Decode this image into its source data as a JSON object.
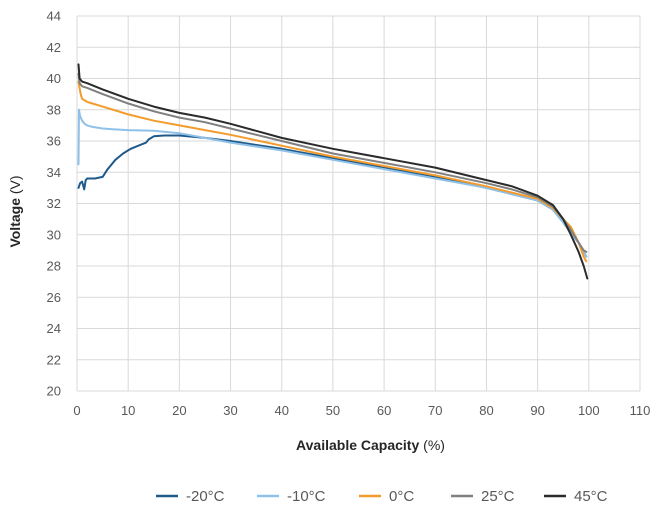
{
  "chart_data": {
    "type": "line",
    "title": "",
    "xlabel_bold": "Available Capacity",
    "xlabel_unit": " (%)",
    "ylabel_bold": "Voltage",
    "ylabel_unit": " (V)",
    "xlim": [
      0,
      110
    ],
    "ylim": [
      20,
      44
    ],
    "x_ticks": [
      0,
      10,
      20,
      30,
      40,
      50,
      60,
      70,
      80,
      90,
      100,
      110
    ],
    "y_ticks": [
      20,
      22,
      24,
      26,
      28,
      30,
      32,
      34,
      36,
      38,
      40,
      42,
      44
    ],
    "grid": true,
    "legend_position": "bottom",
    "series": [
      {
        "name": "-20°C",
        "color": "#1f5a8a",
        "x": [
          0.3,
          0.6,
          1.0,
          1.4,
          1.7,
          2.0,
          2.5,
          3.5,
          5.0,
          6.0,
          7.5,
          9.0,
          10.5,
          12.0,
          13.5,
          14.0,
          15.0,
          17.0,
          20.0,
          25.0,
          30.0,
          40.0,
          50.0,
          60.0,
          70.0,
          80.0,
          85.0,
          90.0,
          93.0,
          95.0,
          96.5,
          98.0,
          99.0,
          99.5
        ],
        "y": [
          33.0,
          33.3,
          33.4,
          32.9,
          33.5,
          33.6,
          33.6,
          33.6,
          33.7,
          34.2,
          34.8,
          35.2,
          35.5,
          35.7,
          35.9,
          36.1,
          36.3,
          36.35,
          36.35,
          36.2,
          36.0,
          35.5,
          34.9,
          34.3,
          33.7,
          33.0,
          32.6,
          32.2,
          31.6,
          30.8,
          30.1,
          29.5,
          28.9,
          28.6
        ]
      },
      {
        "name": "-10°C",
        "color": "#8fc1e8",
        "x": [
          0.3,
          0.4,
          0.6,
          1.0,
          1.5,
          2.0,
          3.0,
          5.0,
          7.0,
          10.0,
          15.0,
          20.0,
          25.0,
          30.0,
          40.0,
          50.0,
          60.0,
          70.0,
          80.0,
          85.0,
          90.0,
          93.0,
          95.0,
          96.5,
          98.0,
          99.0,
          99.5
        ],
        "y": [
          34.5,
          38.0,
          37.6,
          37.3,
          37.1,
          37.0,
          36.9,
          36.8,
          36.75,
          36.7,
          36.65,
          36.5,
          36.2,
          35.9,
          35.4,
          34.8,
          34.2,
          33.6,
          33.0,
          32.6,
          32.2,
          31.6,
          30.8,
          30.1,
          29.5,
          28.9,
          28.6
        ]
      },
      {
        "name": "0°C",
        "color": "#f39c2c",
        "x": [
          0.3,
          0.4,
          0.6,
          0.8,
          1.0,
          1.5,
          2.0,
          3.0,
          5.0,
          10.0,
          15.0,
          20.0,
          25.0,
          30.0,
          40.0,
          50.0,
          60.0,
          70.0,
          80.0,
          85.0,
          90.0,
          93.0,
          95.0,
          96.5,
          98.0,
          99.0,
          99.5
        ],
        "y": [
          39.8,
          39.6,
          39.2,
          38.9,
          38.7,
          38.6,
          38.5,
          38.4,
          38.2,
          37.7,
          37.3,
          37.0,
          36.7,
          36.4,
          35.7,
          35.0,
          34.4,
          33.8,
          33.1,
          32.7,
          32.3,
          31.7,
          31.0,
          30.5,
          29.5,
          28.6,
          28.3
        ]
      },
      {
        "name": "25°C",
        "color": "#808080",
        "x": [
          0.3,
          0.5,
          1.0,
          2.0,
          5.0,
          10.0,
          15.0,
          20.0,
          25.0,
          30.0,
          40.0,
          50.0,
          60.0,
          70.0,
          80.0,
          85.0,
          90.0,
          93.0,
          95.0,
          96.5,
          98.0,
          99.0,
          99.5
        ],
        "y": [
          40.3,
          39.7,
          39.5,
          39.4,
          39.0,
          38.4,
          37.9,
          37.5,
          37.2,
          36.8,
          36.0,
          35.2,
          34.6,
          34.0,
          33.3,
          32.9,
          32.4,
          31.8,
          31.0,
          30.3,
          29.5,
          29.0,
          28.9
        ]
      },
      {
        "name": "45°C",
        "color": "#2b2b2b",
        "x": [
          0.3,
          0.5,
          1.0,
          2.0,
          5.0,
          10.0,
          15.0,
          20.0,
          25.0,
          30.0,
          40.0,
          50.0,
          60.0,
          70.0,
          80.0,
          85.0,
          90.0,
          93.0,
          95.0,
          96.5,
          98.0,
          99.0,
          99.7
        ],
        "y": [
          40.9,
          40.0,
          39.8,
          39.7,
          39.3,
          38.7,
          38.2,
          37.8,
          37.5,
          37.1,
          36.2,
          35.5,
          34.9,
          34.3,
          33.5,
          33.1,
          32.5,
          31.9,
          31.0,
          30.0,
          28.9,
          28.0,
          27.2
        ]
      }
    ]
  }
}
